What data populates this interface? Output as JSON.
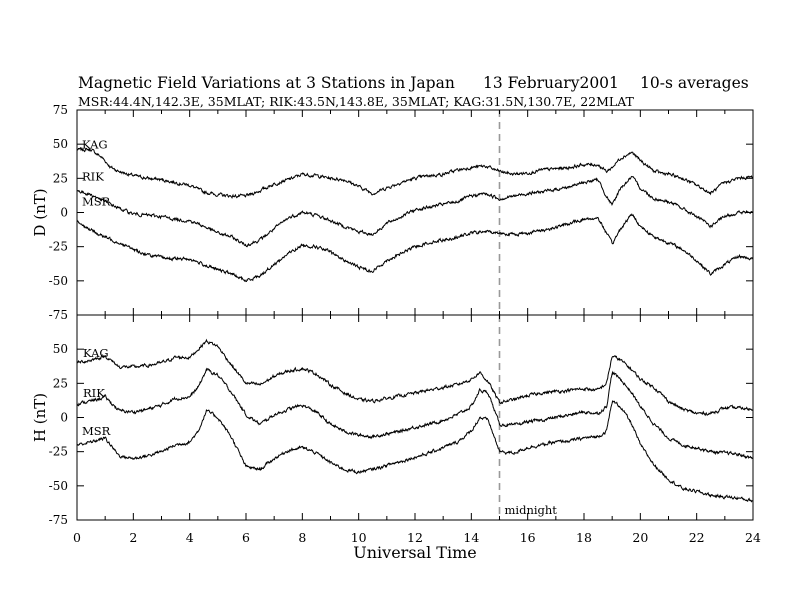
{
  "header": {
    "title": "Magnetic Field Variations at 3 Stations in Japan",
    "date": "13 February2001",
    "averaging": "10-s averages",
    "subtitle": "MSR:44.4N,142.3E, 35MLAT;   RIK:43.5N,143.8E, 35MLAT;   KAG:31.5N,130.7E, 22MLAT"
  },
  "chart_data": [
    {
      "type": "line",
      "panel": "top",
      "ylabel": "D (nT)",
      "ylim": [
        -75,
        75
      ],
      "yticks": [
        75,
        50,
        25,
        0,
        -25,
        -50,
        -75
      ],
      "xlim": [
        0,
        24
      ],
      "xticks": [
        0,
        2,
        4,
        6,
        8,
        10,
        12,
        14,
        16,
        18,
        20,
        22,
        24
      ],
      "series": [
        {
          "name": "KAG",
          "x": [
            0,
            0.5,
            0.9,
            1.2,
            1.5,
            2,
            2.5,
            3,
            3.5,
            4,
            4.5,
            5,
            5.5,
            6,
            6.5,
            7,
            7.5,
            8,
            8.5,
            9,
            9.5,
            10,
            10.5,
            11,
            11.5,
            12,
            12.5,
            13,
            13.5,
            14,
            14.5,
            15,
            15.5,
            16,
            16.5,
            17,
            17.5,
            18,
            18.5,
            18.8,
            19,
            19.3,
            19.7,
            20,
            20.5,
            21,
            21.5,
            22,
            22.5,
            23,
            23.5,
            24
          ],
          "values": [
            46,
            46,
            40,
            33,
            30,
            27,
            25,
            24,
            22,
            20,
            15,
            13,
            12,
            12,
            16,
            21,
            24,
            28,
            27,
            25,
            24,
            19,
            14,
            18,
            22,
            25,
            27,
            28,
            31,
            33,
            34,
            30,
            28,
            29,
            31,
            32,
            33,
            35,
            35,
            30,
            33,
            40,
            44,
            38,
            30,
            28,
            25,
            20,
            14,
            22,
            25,
            26
          ]
        },
        {
          "name": "RIK",
          "x": [
            0,
            0.5,
            1,
            1.5,
            2,
            2.5,
            3,
            3.5,
            4,
            4.5,
            5,
            5.5,
            6,
            6.5,
            7,
            7.5,
            8,
            8.5,
            9,
            9.5,
            10,
            10.5,
            11,
            11.5,
            12,
            12.5,
            13,
            13.5,
            14,
            14.5,
            15,
            15.5,
            16,
            16.5,
            17,
            17.5,
            18,
            18.5,
            18.8,
            19,
            19.3,
            19.7,
            20,
            20.5,
            21,
            21.5,
            22,
            22.5,
            23,
            23.5,
            24
          ],
          "values": [
            16,
            13,
            8,
            3,
            -1,
            -2,
            -3,
            -5,
            -6,
            -10,
            -15,
            -18,
            -24,
            -20,
            -12,
            -4,
            0,
            -2,
            -6,
            -10,
            -14,
            -16,
            -8,
            -3,
            2,
            4,
            6,
            8,
            12,
            14,
            10,
            12,
            14,
            15,
            17,
            19,
            22,
            24,
            12,
            5,
            18,
            26,
            18,
            10,
            8,
            3,
            -3,
            -10,
            -3,
            0,
            0
          ]
        },
        {
          "name": "MSR",
          "x": [
            0,
            0.5,
            1,
            1.5,
            2,
            2.5,
            3,
            3.5,
            4,
            4.5,
            5,
            5.5,
            6,
            6.5,
            7,
            7.5,
            8,
            8.5,
            9,
            9.5,
            10,
            10.5,
            11,
            11.5,
            12,
            12.5,
            13,
            13.5,
            14,
            14.5,
            15,
            15.5,
            16,
            16.5,
            17,
            17.5,
            18,
            18.5,
            18.8,
            19,
            19.3,
            19.7,
            20,
            20.5,
            21,
            21.5,
            22,
            22.5,
            23,
            23.5,
            24
          ],
          "values": [
            -6,
            -13,
            -18,
            -22,
            -27,
            -31,
            -33,
            -34,
            -34,
            -38,
            -42,
            -45,
            -50,
            -46,
            -38,
            -30,
            -24,
            -25,
            -29,
            -35,
            -40,
            -43,
            -35,
            -30,
            -25,
            -22,
            -20,
            -18,
            -15,
            -14,
            -15,
            -16,
            -15,
            -13,
            -11,
            -8,
            -5,
            -4,
            -15,
            -23,
            -12,
            -1,
            -10,
            -18,
            -22,
            -27,
            -35,
            -45,
            -38,
            -32,
            -34
          ]
        }
      ]
    },
    {
      "type": "line",
      "panel": "bottom",
      "ylabel": "H (nT)",
      "xlabel": "Universal Time",
      "ylim": [
        -75,
        75
      ],
      "yticks": [
        75,
        50,
        25,
        0,
        -25,
        -50,
        -75
      ],
      "xlim": [
        0,
        24
      ],
      "xticks": [
        0,
        2,
        4,
        6,
        8,
        10,
        12,
        14,
        16,
        18,
        20,
        22,
        24
      ],
      "series": [
        {
          "name": "KAG",
          "x": [
            0,
            0.5,
            1,
            1.5,
            2,
            2.5,
            3,
            3.5,
            4,
            4.3,
            4.6,
            5,
            5.5,
            6,
            6.5,
            7,
            7.5,
            8,
            8.5,
            9,
            9.5,
            10,
            10.5,
            11,
            11.5,
            12,
            12.5,
            13,
            13.5,
            14,
            14.3,
            14.6,
            15,
            15.5,
            16,
            16.5,
            17,
            17.5,
            18,
            18.5,
            18.8,
            19,
            19.3,
            19.7,
            20,
            20.5,
            21,
            21.5,
            22,
            22.5,
            23,
            23.5,
            24
          ],
          "values": [
            40,
            42,
            45,
            37,
            37,
            38,
            40,
            44,
            44,
            50,
            56,
            52,
            38,
            25,
            24,
            30,
            34,
            36,
            32,
            24,
            18,
            13,
            12,
            14,
            16,
            18,
            20,
            22,
            24,
            28,
            33,
            26,
            11,
            13,
            16,
            18,
            19,
            20,
            21,
            20,
            25,
            45,
            42,
            35,
            28,
            22,
            12,
            6,
            3,
            3,
            7,
            7,
            6
          ]
        },
        {
          "name": "RIK",
          "x": [
            0,
            0.5,
            1,
            1.5,
            2,
            2.5,
            3,
            3.5,
            4,
            4.3,
            4.6,
            5,
            5.5,
            6,
            6.5,
            7,
            7.5,
            8,
            8.5,
            9,
            9.5,
            10,
            10.5,
            11,
            11.5,
            12,
            12.5,
            13,
            13.5,
            14,
            14.3,
            14.6,
            15,
            15.5,
            16,
            16.5,
            17,
            17.5,
            18,
            18.5,
            18.8,
            19,
            19.3,
            19.7,
            20,
            20.5,
            21,
            21.5,
            22,
            22.5,
            23,
            23.5,
            24
          ],
          "values": [
            10,
            12,
            15,
            5,
            4,
            6,
            9,
            14,
            15,
            22,
            35,
            31,
            18,
            2,
            -5,
            2,
            6,
            9,
            4,
            -5,
            -10,
            -13,
            -14,
            -12,
            -10,
            -7,
            -5,
            -2,
            2,
            8,
            20,
            18,
            -5,
            -6,
            -3,
            -2,
            0,
            2,
            4,
            3,
            8,
            33,
            28,
            18,
            8,
            -5,
            -15,
            -20,
            -22,
            -25,
            -26,
            -27,
            -30
          ]
        },
        {
          "name": "MSR",
          "x": [
            0,
            0.5,
            1,
            1.5,
            2,
            2.5,
            3,
            3.5,
            4,
            4.3,
            4.6,
            5,
            5.5,
            6,
            6.5,
            7,
            7.5,
            8,
            8.5,
            9,
            9.5,
            10,
            10.5,
            11,
            11.5,
            12,
            12.5,
            13,
            13.5,
            14,
            14.3,
            14.6,
            15,
            15.5,
            16,
            16.5,
            17,
            17.5,
            18,
            18.5,
            18.8,
            19,
            19.3,
            19.7,
            20,
            20.5,
            21,
            21.5,
            22,
            22.5,
            23,
            23.5,
            24
          ],
          "values": [
            -20,
            -18,
            -15,
            -28,
            -30,
            -28,
            -25,
            -20,
            -18,
            -10,
            5,
            0,
            -15,
            -36,
            -38,
            -30,
            -24,
            -22,
            -26,
            -33,
            -38,
            -40,
            -38,
            -35,
            -32,
            -29,
            -26,
            -22,
            -18,
            -10,
            0,
            -2,
            -25,
            -26,
            -22,
            -20,
            -18,
            -17,
            -15,
            -14,
            -10,
            12,
            8,
            -5,
            -20,
            -35,
            -45,
            -52,
            -54,
            -57,
            -58,
            -59,
            -61
          ]
        }
      ]
    }
  ],
  "annotation": {
    "label": "midnight",
    "x": 15
  }
}
